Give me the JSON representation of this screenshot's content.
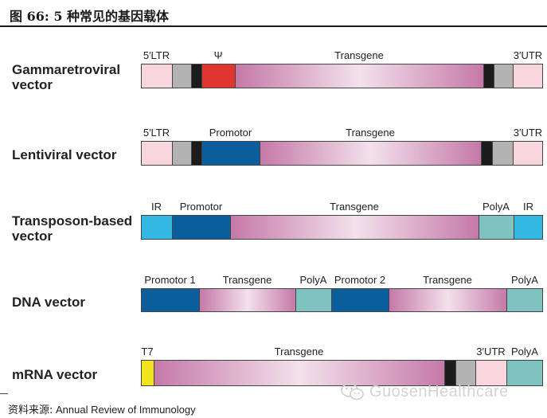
{
  "title": "图 66: 5 种常见的基因载体",
  "source_prefix": "资料来源:",
  "source_text": "Annual Review of Immunology",
  "watermark": "GuosenHealthcare",
  "colors": {
    "ltr_light": "#f9d5de",
    "gray": "#b3b3b3",
    "black": "#1c1c1c",
    "psi_red": "#e0362f",
    "promotor_blue": "#0b5e9c",
    "ir_cyan": "#33b7e3",
    "polya_teal": "#7fc3c1",
    "utr_light": "#f9d5de",
    "t7_yellow": "#f3e51d",
    "transgene_edge": "#c579a8",
    "transgene_center": "#f3e1ec"
  },
  "vectors": [
    {
      "id": "gammaretroviral",
      "label_lines": [
        "Gammaretroviral",
        "vector"
      ],
      "segments": [
        {
          "kind": "ltr",
          "label": "5′LTR"
        },
        {
          "kind": "gray",
          "label": ""
        },
        {
          "kind": "black",
          "label": ""
        },
        {
          "kind": "psi",
          "label": "Ψ"
        },
        {
          "kind": "transgene",
          "label": "Transgene"
        },
        {
          "kind": "black",
          "label": ""
        },
        {
          "kind": "gray",
          "label": ""
        },
        {
          "kind": "utr",
          "label": "3′UTR"
        }
      ]
    },
    {
      "id": "lentiviral",
      "label_lines": [
        "Lentiviral vector"
      ],
      "segments": [
        {
          "kind": "ltr",
          "label": "5′LTR"
        },
        {
          "kind": "gray",
          "label": ""
        },
        {
          "kind": "black",
          "label": ""
        },
        {
          "kind": "promotor",
          "label": "Promotor"
        },
        {
          "kind": "transgene",
          "label": "Transgene"
        },
        {
          "kind": "black",
          "label": ""
        },
        {
          "kind": "gray",
          "label": ""
        },
        {
          "kind": "utr",
          "label": "3′UTR"
        }
      ]
    },
    {
      "id": "transposon",
      "label_lines": [
        "Transposon-based",
        "vector"
      ],
      "segments": [
        {
          "kind": "ir",
          "label": "IR"
        },
        {
          "kind": "promotor",
          "label": "Promotor"
        },
        {
          "kind": "transgene",
          "label": "Transgene"
        },
        {
          "kind": "polya",
          "label": "PolyA"
        },
        {
          "kind": "ir",
          "label": "IR"
        }
      ]
    },
    {
      "id": "dna",
      "label_lines": [
        "DNA vector"
      ],
      "segments": [
        {
          "kind": "promotor",
          "label": "Promotor 1"
        },
        {
          "kind": "transgene",
          "label": "Transgene"
        },
        {
          "kind": "polya",
          "label": "PolyA"
        },
        {
          "kind": "promotor",
          "label": "Promotor 2"
        },
        {
          "kind": "transgene",
          "label": "Transgene"
        },
        {
          "kind": "polya",
          "label": "PolyA"
        }
      ]
    },
    {
      "id": "mrna",
      "label_lines": [
        "mRNA vector"
      ],
      "segments": [
        {
          "kind": "t7",
          "label": "T7"
        },
        {
          "kind": "transgene",
          "label": "Transgene"
        },
        {
          "kind": "black",
          "label": ""
        },
        {
          "kind": "gray",
          "label": ""
        },
        {
          "kind": "utr",
          "label": "3′UTR"
        },
        {
          "kind": "polya",
          "label": "PolyA"
        }
      ]
    }
  ]
}
